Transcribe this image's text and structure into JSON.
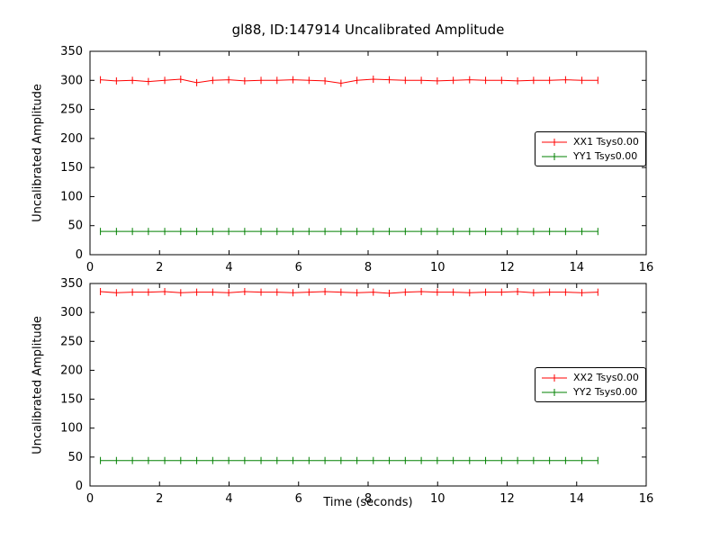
{
  "figure_title": "gl88, ID:147914 Uncalibrated Amplitude",
  "colors": {
    "axis": "#000000",
    "series_red": "#ff0000",
    "series_green": "#008000",
    "background": "#ffffff"
  },
  "chart_data": [
    {
      "type": "line",
      "title": "gl88, ID:147914 Uncalibrated Amplitude",
      "xlabel": "",
      "ylabel": "Uncalibrated Amplitude",
      "xlim": [
        0,
        16
      ],
      "ylim": [
        0,
        350
      ],
      "xticks": [
        0,
        2,
        4,
        6,
        8,
        10,
        12,
        14,
        16
      ],
      "yticks": [
        0,
        50,
        100,
        150,
        200,
        250,
        300,
        350
      ],
      "grid": false,
      "legend_position": "right",
      "marker": "plus-tick",
      "x": [
        0.3,
        0.76,
        1.22,
        1.68,
        2.15,
        2.61,
        3.07,
        3.53,
        3.99,
        4.45,
        4.92,
        5.38,
        5.84,
        6.3,
        6.76,
        7.22,
        7.68,
        8.15,
        8.61,
        9.07,
        9.53,
        9.99,
        10.45,
        10.92,
        11.38,
        11.84,
        12.3,
        12.76,
        13.22,
        13.68,
        14.15,
        14.61
      ],
      "series": [
        {
          "name": "XX1 Tsys0.00",
          "color": "#ff0000",
          "values": [
            301,
            299,
            300,
            298,
            300,
            302,
            296,
            300,
            301,
            299,
            300,
            300,
            301,
            300,
            299,
            295,
            300,
            302,
            301,
            300,
            300,
            299,
            300,
            301,
            300,
            300,
            299,
            300,
            300,
            301,
            300,
            300
          ]
        },
        {
          "name": "YY1 Tsys0.00",
          "color": "#008000",
          "values": [
            40,
            40,
            40,
            40,
            40,
            40,
            40,
            40,
            40,
            40,
            40,
            40,
            40,
            40,
            40,
            40,
            40,
            40,
            40,
            40,
            40,
            40,
            40,
            40,
            40,
            40,
            40,
            40,
            40,
            40,
            40,
            40
          ]
        }
      ]
    },
    {
      "type": "line",
      "title": "",
      "xlabel": "Time (seconds)",
      "ylabel": "Uncalibrated Amplitude",
      "xlim": [
        0,
        16
      ],
      "ylim": [
        0,
        350
      ],
      "xticks": [
        0,
        2,
        4,
        6,
        8,
        10,
        12,
        14,
        16
      ],
      "yticks": [
        0,
        50,
        100,
        150,
        200,
        250,
        300,
        350
      ],
      "grid": false,
      "legend_position": "right",
      "marker": "plus-tick",
      "x": [
        0.3,
        0.76,
        1.22,
        1.68,
        2.15,
        2.61,
        3.07,
        3.53,
        3.99,
        4.45,
        4.92,
        5.38,
        5.84,
        6.3,
        6.76,
        7.22,
        7.68,
        8.15,
        8.61,
        9.07,
        9.53,
        9.99,
        10.45,
        10.92,
        11.38,
        11.84,
        12.3,
        12.76,
        13.22,
        13.68,
        14.15,
        14.61
      ],
      "series": [
        {
          "name": "XX2 Tsys0.00",
          "color": "#ff0000",
          "values": [
            336,
            334,
            335,
            335,
            336,
            334,
            335,
            335,
            334,
            336,
            335,
            335,
            334,
            335,
            336,
            335,
            334,
            335,
            333,
            335,
            336,
            335,
            335,
            334,
            335,
            335,
            336,
            334,
            335,
            335,
            334,
            335
          ]
        },
        {
          "name": "YY2 Tsys0.00",
          "color": "#008000",
          "values": [
            44,
            44,
            44,
            44,
            44,
            44,
            44,
            44,
            44,
            44,
            44,
            44,
            44,
            44,
            44,
            44,
            44,
            44,
            44,
            44,
            44,
            44,
            44,
            44,
            44,
            44,
            44,
            44,
            44,
            44,
            44,
            44
          ]
        }
      ]
    }
  ]
}
